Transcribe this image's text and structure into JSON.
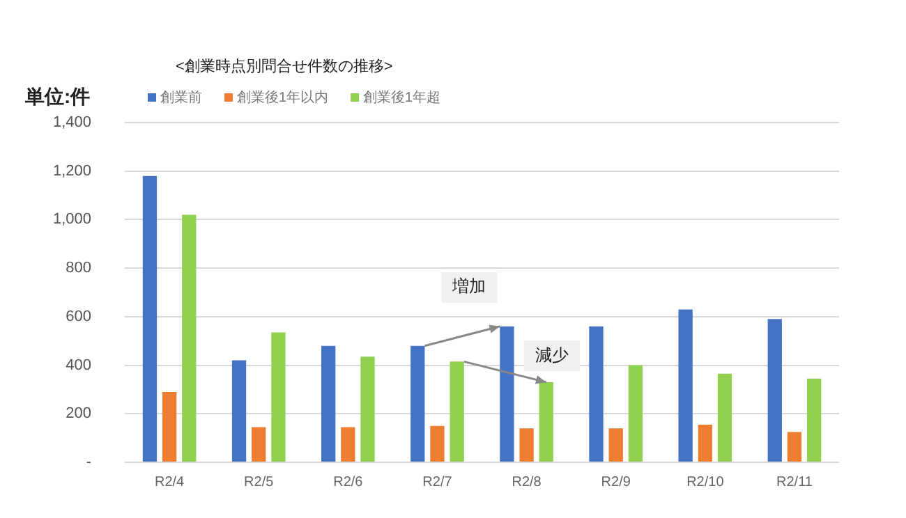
{
  "chart_data": {
    "type": "bar",
    "title": "<創業時点別問合せ件数の推移>",
    "ylabel": "単位:件",
    "categories": [
      "R2/4",
      "R2/5",
      "R2/6",
      "R2/7",
      "R2/8",
      "R2/9",
      "R2/10",
      "R2/11"
    ],
    "series": [
      {
        "name": "創業前",
        "color": "#4472c4",
        "values": [
          1180,
          420,
          480,
          480,
          560,
          560,
          630,
          590
        ]
      },
      {
        "name": "創業後1年以内",
        "color": "#ed7d31",
        "values": [
          290,
          145,
          145,
          150,
          140,
          140,
          155,
          125
        ]
      },
      {
        "name": "創業後1年超",
        "color": "#92d050",
        "values": [
          1020,
          535,
          435,
          415,
          330,
          400,
          365,
          345
        ]
      }
    ],
    "ylim": [
      0,
      1400
    ],
    "yticks": [
      {
        "value": 0,
        "label": "-"
      },
      {
        "value": 200,
        "label": "200"
      },
      {
        "value": 400,
        "label": "400"
      },
      {
        "value": 600,
        "label": "600"
      },
      {
        "value": 800,
        "label": "800"
      },
      {
        "value": 1000,
        "label": "1,000"
      },
      {
        "value": 1200,
        "label": "1,200"
      },
      {
        "value": 1400,
        "label": "1,400"
      }
    ],
    "grid": "y",
    "legend": "top left",
    "annotations": [
      "増加",
      "減少"
    ]
  }
}
